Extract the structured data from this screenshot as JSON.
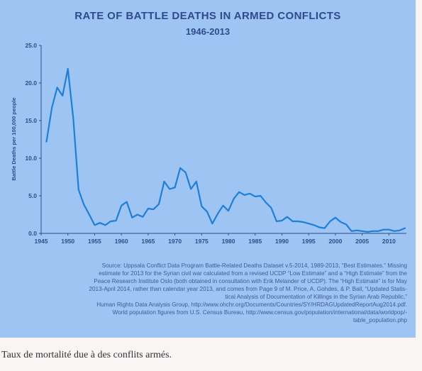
{
  "colors": {
    "panel_bg": "#9dc4f2",
    "line": "#1f7fd6",
    "text": "#2f4a8c"
  },
  "chart_data": {
    "type": "line",
    "title": "RATE OF BATTLE DEATHS IN ARMED CONFLICTS",
    "subtitle": "1946-2013",
    "xlabel": "",
    "ylabel": "Battle Deaths per 100,000 people",
    "xlim": [
      1945,
      2013
    ],
    "ylim": [
      0,
      25
    ],
    "xticks": [
      "1945",
      "1950",
      "1955",
      "1960",
      "1965",
      "1970",
      "1975",
      "1980",
      "1985",
      "1990",
      "1995",
      "2000",
      "2005",
      "2010"
    ],
    "yticks": [
      "0.0",
      "5.0",
      "10.0",
      "15.0",
      "20.0",
      "25.0"
    ],
    "grid": false,
    "series": [
      {
        "x": [
          1946,
          1947,
          1948,
          1949,
          1950,
          1951,
          1952,
          1953,
          1954,
          1955,
          1956,
          1957,
          1958,
          1959,
          1960,
          1961,
          1962,
          1963,
          1964,
          1965,
          1966,
          1967,
          1968,
          1969,
          1970,
          1971,
          1972,
          1973,
          1974,
          1975,
          1976,
          1977,
          1978,
          1979,
          1980,
          1981,
          1982,
          1983,
          1984,
          1985,
          1986,
          1987,
          1988,
          1989,
          1990,
          1991,
          1992,
          1993,
          1994,
          1995,
          1996,
          1997,
          1998,
          1999,
          2000,
          2001,
          2002,
          2003,
          2004,
          2005,
          2006,
          2007,
          2008,
          2009,
          2010,
          2011,
          2012,
          2013
        ],
        "values": [
          12.2,
          16.7,
          19.4,
          18.3,
          21.9,
          15.3,
          5.8,
          3.8,
          2.5,
          1.1,
          1.4,
          1.1,
          1.6,
          1.7,
          3.7,
          4.2,
          2.1,
          2.5,
          2.2,
          3.3,
          3.2,
          3.9,
          6.9,
          5.9,
          6.1,
          8.7,
          8.1,
          5.9,
          6.9,
          3.6,
          2.9,
          1.3,
          2.6,
          3.7,
          3.0,
          4.6,
          5.5,
          5.1,
          5.3,
          4.9,
          5.0,
          4.1,
          3.4,
          1.6,
          1.7,
          2.2,
          1.6,
          1.6,
          1.5,
          1.3,
          1.1,
          0.8,
          0.7,
          1.6,
          2.1,
          1.5,
          1.2,
          0.3,
          0.4,
          0.3,
          0.2,
          0.3,
          0.3,
          0.5,
          0.5,
          0.3,
          0.4,
          0.7
        ]
      }
    ]
  },
  "source_lines": [
    "Source: Uppsala Conflict Data Program Battle-Related Deaths Dataset v.5-2014, 1989-2013, “Best Estimates.” Missing",
    "estimate for 2013 for the Syrian civil war calculated from a revised UCDP “Low Estimate” and a “High Estimate” from the",
    "Peace Research Institute Oslo (both obtained in consultation with Erik Melander of UCDP). The “High Estimate” is for May",
    "2013-April 2014, rather than calendar year 2013, and comes from Page 9 of M. Price, A. Gohdes, & P. Ball, “Updated Statis-",
    "tical Analysis of Documentation of Killings in the Syrian Arab Republic,”",
    "Human Rights Data Analysis Group, http://www.ohchr.org/Documents/Countries/SY/HRDAGUpdatedReportAug2014.pdf.",
    "World population figures from U.S. Census Bureau, http://www.census.gov/population/international/data/worldpop/-",
    "table_population.php"
  ],
  "caption": "Taux de mortalité due à des conflits armés."
}
